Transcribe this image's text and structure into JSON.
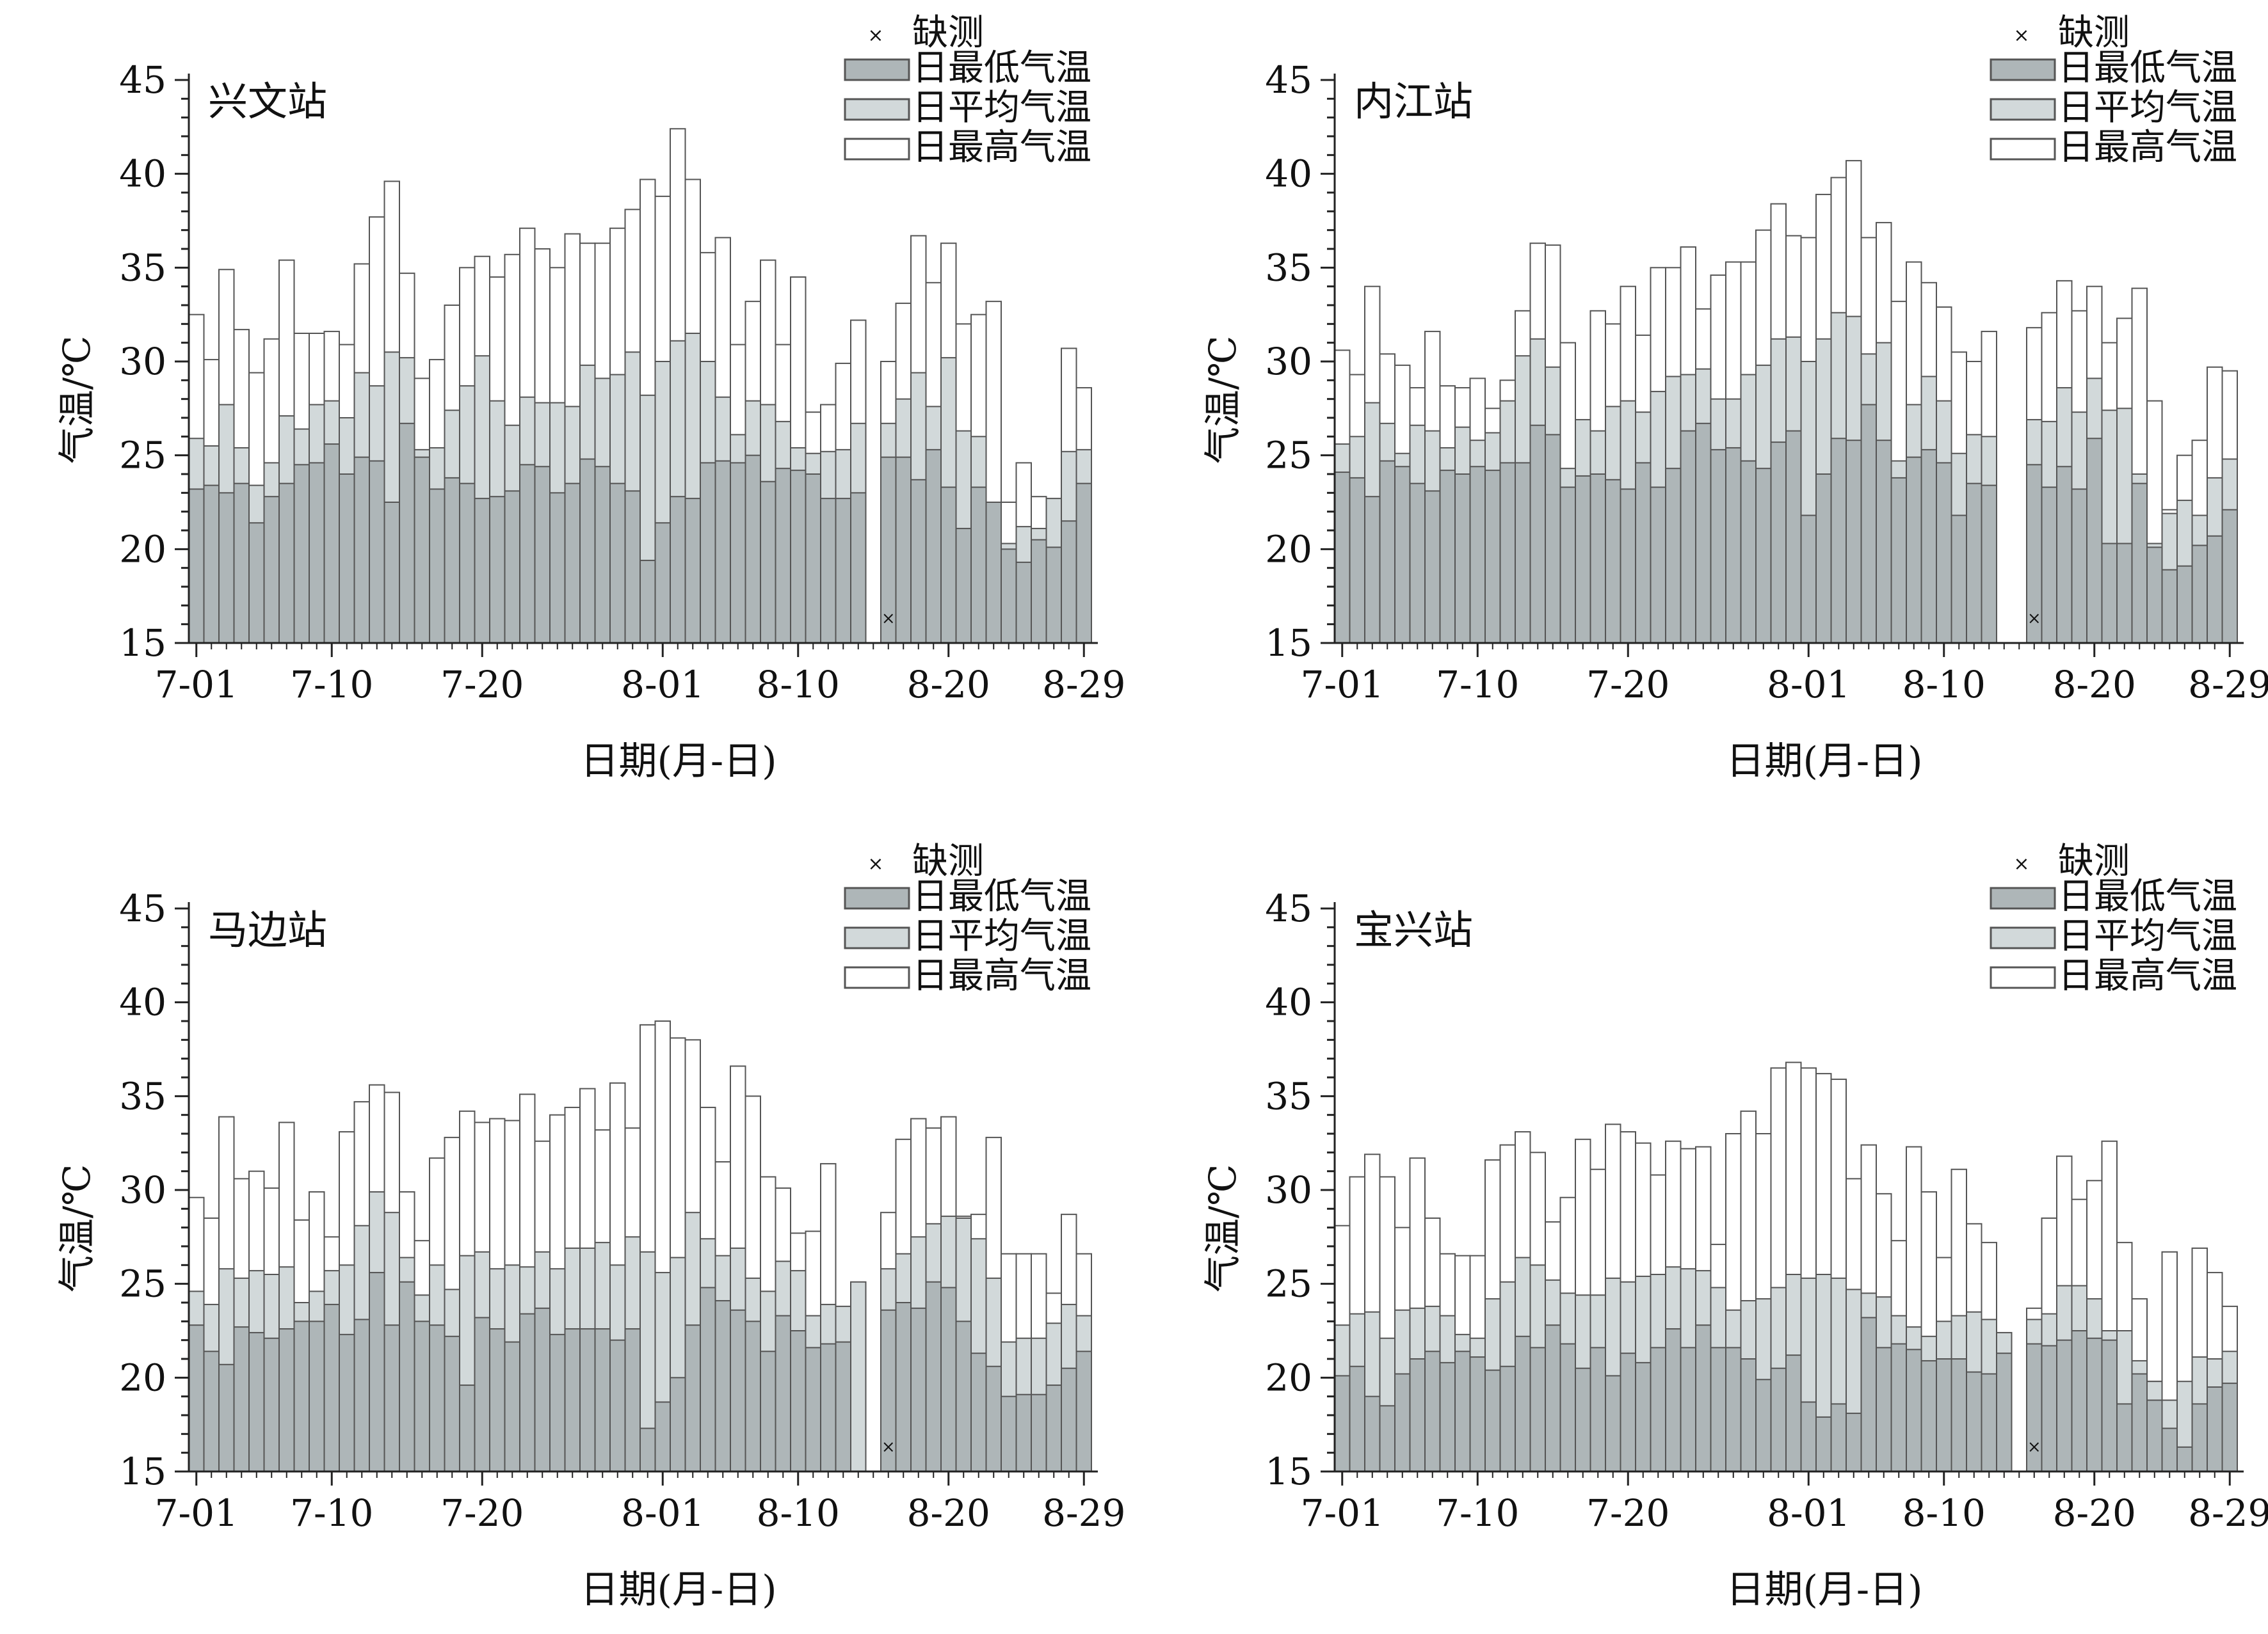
{
  "chart_data": [
    {
      "type": "bar",
      "title": "兴文站",
      "xlabel": "日期(月-日)",
      "ylabel": "气温/℃",
      "ylim": [
        15,
        45
      ],
      "yticks": [
        15,
        20,
        25,
        30,
        35,
        40,
        45
      ],
      "xticks": [
        {
          "label": "7-01",
          "index": 0
        },
        {
          "label": "7-10",
          "index": 9
        },
        {
          "label": "7-20",
          "index": 19
        },
        {
          "label": "8-01",
          "index": 31
        },
        {
          "label": "8-10",
          "index": 40
        },
        {
          "label": "8-20",
          "index": 50
        },
        {
          "label": "8-29",
          "index": 59
        }
      ],
      "legend": [
        "缺测",
        "日最低气温",
        "日平均气温",
        "日最高气温"
      ],
      "missing_index": 46,
      "series": [
        {
          "name": "日最低气温",
          "values": [
            23.2,
            23.4,
            23.0,
            23.5,
            21.4,
            22.8,
            23.5,
            24.5,
            24.6,
            25.6,
            24.0,
            24.9,
            24.7,
            22.5,
            26.7,
            24.9,
            23.2,
            23.8,
            23.5,
            22.7,
            22.8,
            23.1,
            24.5,
            24.4,
            23.0,
            23.5,
            24.8,
            24.4,
            23.5,
            23.1,
            19.4,
            21.4,
            22.8,
            22.7,
            24.6,
            24.7,
            24.6,
            25.0,
            23.6,
            24.3,
            24.2,
            24.0,
            22.7,
            22.7,
            23.0,
            null,
            24.9,
            24.9,
            23.7,
            25.3,
            23.3,
            21.1,
            23.3,
            22.5,
            20.0,
            19.3,
            20.5,
            20.1,
            21.5,
            23.5
          ]
        },
        {
          "name": "日平均气温",
          "values": [
            25.9,
            25.5,
            27.7,
            25.4,
            23.4,
            24.6,
            27.1,
            26.4,
            27.7,
            27.9,
            27.0,
            29.4,
            28.7,
            30.5,
            30.2,
            25.3,
            25.4,
            27.4,
            28.7,
            30.3,
            27.9,
            26.6,
            28.1,
            27.8,
            27.8,
            27.6,
            29.8,
            29.1,
            29.3,
            30.5,
            28.2,
            30.0,
            31.1,
            31.5,
            30.0,
            28.1,
            26.1,
            27.9,
            27.7,
            26.8,
            25.4,
            25.1,
            25.2,
            25.3,
            26.7,
            null,
            26.7,
            28.0,
            29.4,
            27.6,
            30.2,
            26.3,
            26.0,
            21.5,
            20.3,
            21.2,
            21.1,
            22.7,
            25.2,
            25.3
          ]
        },
        {
          "name": "日最高气温",
          "values": [
            32.5,
            30.1,
            34.9,
            31.7,
            29.4,
            31.2,
            35.4,
            31.5,
            31.5,
            31.6,
            30.9,
            35.2,
            37.7,
            39.6,
            34.7,
            29.1,
            30.1,
            33.0,
            35.0,
            35.6,
            34.5,
            35.7,
            37.1,
            36.0,
            35.0,
            36.8,
            36.3,
            36.3,
            37.1,
            38.1,
            39.7,
            38.8,
            42.4,
            39.7,
            35.8,
            36.6,
            30.9,
            33.2,
            35.4,
            30.9,
            34.5,
            27.3,
            27.7,
            29.9,
            32.2,
            null,
            30.0,
            33.1,
            36.7,
            34.2,
            36.3,
            32.0,
            32.5,
            33.2,
            22.5,
            24.6,
            22.8,
            22.5,
            30.7,
            28.6
          ]
        }
      ]
    },
    {
      "type": "bar",
      "title": "内江站",
      "xlabel": "日期(月-日)",
      "ylabel": "气温/℃",
      "ylim": [
        15,
        45
      ],
      "yticks": [
        15,
        20,
        25,
        30,
        35,
        40,
        45
      ],
      "xticks": [
        {
          "label": "7-01",
          "index": 0
        },
        {
          "label": "7-10",
          "index": 9
        },
        {
          "label": "7-20",
          "index": 19
        },
        {
          "label": "8-01",
          "index": 31
        },
        {
          "label": "8-10",
          "index": 40
        },
        {
          "label": "8-20",
          "index": 50
        },
        {
          "label": "8-29",
          "index": 59
        }
      ],
      "legend": [
        "缺测",
        "日最低气温",
        "日平均气温",
        "日最高气温"
      ],
      "missing_index": 46,
      "series": [
        {
          "name": "日最低气温",
          "values": [
            24.1,
            23.8,
            22.8,
            24.7,
            24.4,
            23.5,
            23.1,
            24.2,
            24.0,
            24.4,
            24.2,
            24.6,
            24.6,
            26.6,
            26.1,
            23.3,
            23.9,
            24.0,
            23.7,
            23.2,
            24.6,
            23.3,
            24.3,
            26.3,
            26.7,
            25.3,
            25.4,
            24.7,
            24.3,
            25.7,
            26.3,
            21.8,
            24.0,
            25.9,
            25.8,
            27.7,
            25.8,
            23.8,
            24.9,
            25.3,
            24.6,
            21.8,
            23.5,
            23.4,
            null,
            null,
            24.5,
            23.3,
            24.4,
            23.2,
            25.9,
            20.3,
            20.3,
            23.5,
            20.1,
            18.9,
            19.1,
            20.2,
            20.7,
            22.1
          ]
        },
        {
          "name": "日平均气温",
          "values": [
            25.6,
            26.0,
            27.8,
            26.7,
            25.1,
            26.6,
            26.3,
            25.4,
            26.5,
            25.8,
            26.2,
            27.9,
            30.3,
            31.2,
            29.7,
            24.3,
            26.9,
            26.3,
            27.6,
            27.9,
            27.3,
            28.4,
            29.2,
            29.3,
            29.6,
            28.0,
            28.0,
            29.3,
            29.8,
            31.2,
            31.3,
            30.0,
            31.2,
            32.6,
            32.4,
            30.4,
            31.0,
            24.7,
            27.7,
            29.2,
            27.9,
            25.1,
            26.1,
            26.0,
            null,
            null,
            26.9,
            26.8,
            28.6,
            27.3,
            29.1,
            27.4,
            27.5,
            24.0,
            20.3,
            21.9,
            22.6,
            21.8,
            23.8,
            24.8
          ]
        },
        {
          "name": "日最高气温",
          "values": [
            30.6,
            29.3,
            34.0,
            30.4,
            29.8,
            28.6,
            31.6,
            28.7,
            28.6,
            29.1,
            27.5,
            29.0,
            32.7,
            36.3,
            36.2,
            31.0,
            26.8,
            32.7,
            32.0,
            34.0,
            31.4,
            35.0,
            35.0,
            36.1,
            32.8,
            34.6,
            35.3,
            35.3,
            37.0,
            38.4,
            36.7,
            36.6,
            38.9,
            39.8,
            40.7,
            36.6,
            37.4,
            33.2,
            35.3,
            34.2,
            32.9,
            30.5,
            30.0,
            31.6,
            null,
            null,
            31.8,
            32.6,
            34.3,
            32.7,
            34.0,
            31.0,
            32.3,
            33.9,
            27.9,
            22.1,
            25.0,
            25.8,
            29.7,
            29.5
          ]
        }
      ]
    },
    {
      "type": "bar",
      "title": "马边站",
      "xlabel": "日期(月-日)",
      "ylabel": "气温/℃",
      "ylim": [
        15,
        45
      ],
      "yticks": [
        15,
        20,
        25,
        30,
        35,
        40,
        45
      ],
      "xticks": [
        {
          "label": "7-01",
          "index": 0
        },
        {
          "label": "7-10",
          "index": 9
        },
        {
          "label": "7-20",
          "index": 19
        },
        {
          "label": "8-01",
          "index": 31
        },
        {
          "label": "8-10",
          "index": 40
        },
        {
          "label": "8-20",
          "index": 50
        },
        {
          "label": "8-29",
          "index": 59
        }
      ],
      "legend": [
        "缺测",
        "日最低气温",
        "日平均气温",
        "日最高气温"
      ],
      "missing_index": 46,
      "series": [
        {
          "name": "日最低气温",
          "values": [
            22.8,
            21.4,
            20.7,
            22.7,
            22.4,
            22.1,
            22.6,
            23.0,
            23.0,
            23.9,
            22.3,
            23.1,
            25.6,
            22.8,
            25.1,
            23.0,
            22.8,
            22.2,
            19.6,
            23.2,
            22.6,
            21.9,
            23.4,
            23.7,
            22.3,
            22.6,
            22.6,
            22.6,
            22.0,
            22.6,
            17.3,
            18.7,
            20.0,
            22.8,
            24.8,
            24.1,
            23.6,
            23.0,
            21.4,
            23.3,
            22.5,
            21.6,
            21.8,
            21.9,
            null,
            null,
            23.6,
            24.0,
            23.7,
            25.1,
            24.8,
            23.0,
            21.3,
            20.6,
            19.0,
            19.1,
            19.1,
            19.6,
            20.5,
            21.4
          ]
        },
        {
          "name": "日平均气温",
          "values": [
            24.6,
            23.9,
            25.8,
            25.3,
            25.7,
            25.5,
            25.9,
            24.0,
            24.6,
            25.7,
            26.0,
            28.1,
            29.9,
            28.8,
            26.4,
            24.4,
            26.0,
            24.7,
            26.5,
            26.7,
            25.8,
            26.0,
            25.9,
            26.7,
            25.8,
            26.9,
            26.9,
            27.2,
            26.0,
            27.5,
            26.7,
            25.6,
            26.4,
            28.8,
            27.4,
            26.5,
            26.9,
            25.3,
            24.6,
            26.2,
            25.7,
            23.3,
            23.9,
            23.8,
            25.1,
            null,
            25.8,
            26.6,
            27.5,
            28.2,
            28.6,
            28.5,
            27.4,
            25.3,
            21.9,
            22.1,
            22.1,
            22.9,
            23.9,
            23.3
          ]
        },
        {
          "name": "日最高气温",
          "values": [
            29.6,
            28.5,
            33.9,
            30.6,
            31.0,
            30.1,
            33.6,
            28.4,
            29.9,
            27.5,
            33.1,
            34.7,
            35.6,
            35.2,
            29.9,
            27.3,
            31.7,
            32.8,
            34.2,
            33.6,
            33.8,
            33.7,
            35.1,
            32.6,
            34.0,
            34.4,
            35.4,
            33.2,
            35.7,
            33.3,
            38.8,
            39.0,
            38.1,
            38.0,
            34.4,
            31.5,
            36.6,
            35.0,
            30.7,
            30.1,
            27.7,
            27.8,
            31.4,
            null,
            null,
            null,
            28.8,
            32.7,
            33.8,
            33.3,
            33.9,
            28.6,
            28.7,
            32.8,
            26.6,
            26.6,
            26.6,
            24.5,
            28.7,
            26.6
          ]
        }
      ]
    },
    {
      "type": "bar",
      "title": "宝兴站",
      "xlabel": "日期(月-日)",
      "ylabel": "气温/℃",
      "ylim": [
        15,
        45
      ],
      "yticks": [
        15,
        20,
        25,
        30,
        35,
        40,
        45
      ],
      "xticks": [
        {
          "label": "7-01",
          "index": 0
        },
        {
          "label": "7-10",
          "index": 9
        },
        {
          "label": "7-20",
          "index": 19
        },
        {
          "label": "8-01",
          "index": 31
        },
        {
          "label": "8-10",
          "index": 40
        },
        {
          "label": "8-20",
          "index": 50
        },
        {
          "label": "8-29",
          "index": 59
        }
      ],
      "legend": [
        "缺测",
        "日最低气温",
        "日平均气温",
        "日最高气温"
      ],
      "missing_index": 46,
      "series": [
        {
          "name": "日最低气温",
          "values": [
            20.1,
            20.6,
            19.0,
            18.5,
            20.2,
            21.0,
            21.4,
            20.8,
            21.4,
            21.1,
            20.4,
            20.6,
            22.2,
            21.6,
            22.8,
            21.8,
            20.5,
            21.6,
            20.1,
            21.3,
            20.8,
            21.6,
            22.6,
            21.6,
            22.8,
            21.6,
            21.6,
            21.0,
            19.9,
            20.5,
            21.2,
            18.7,
            17.9,
            18.6,
            18.1,
            23.2,
            21.6,
            21.8,
            21.5,
            20.9,
            21.0,
            21.0,
            20.3,
            20.2,
            21.3,
            null,
            21.8,
            21.7,
            22.0,
            22.5,
            22.1,
            22.0,
            18.6,
            20.2,
            18.8,
            17.3,
            16.3,
            18.6,
            19.5,
            19.7
          ]
        },
        {
          "name": "日平均气温",
          "values": [
            22.8,
            23.4,
            23.5,
            22.1,
            23.6,
            23.7,
            23.8,
            23.3,
            22.3,
            22.1,
            24.2,
            25.1,
            26.4,
            26.0,
            25.2,
            24.5,
            24.4,
            24.4,
            25.3,
            25.1,
            25.4,
            25.5,
            25.9,
            25.8,
            25.7,
            24.8,
            23.6,
            24.1,
            24.2,
            24.8,
            25.5,
            25.3,
            25.5,
            25.3,
            24.7,
            24.5,
            24.3,
            23.3,
            22.7,
            22.2,
            23.0,
            23.3,
            23.5,
            23.1,
            22.4,
            null,
            23.1,
            23.4,
            24.9,
            24.9,
            24.2,
            22.5,
            22.5,
            20.9,
            19.8,
            18.8,
            19.8,
            21.1,
            21.0,
            21.4
          ]
        },
        {
          "name": "日最高气温",
          "values": [
            28.1,
            30.7,
            31.9,
            30.7,
            28.0,
            31.7,
            28.5,
            26.6,
            26.5,
            26.5,
            31.6,
            32.4,
            33.1,
            32.0,
            28.3,
            29.6,
            32.7,
            31.1,
            33.5,
            33.1,
            32.5,
            30.8,
            32.6,
            32.2,
            32.3,
            27.1,
            33.0,
            34.2,
            33.0,
            36.5,
            36.8,
            36.5,
            36.2,
            35.9,
            30.6,
            32.4,
            29.8,
            27.3,
            32.3,
            29.9,
            26.4,
            31.1,
            28.2,
            27.2,
            null,
            null,
            23.7,
            28.5,
            31.8,
            29.5,
            30.5,
            32.6,
            27.2,
            24.2,
            19.8,
            26.7,
            18.5,
            26.9,
            25.6,
            23.8
          ]
        }
      ]
    }
  ]
}
